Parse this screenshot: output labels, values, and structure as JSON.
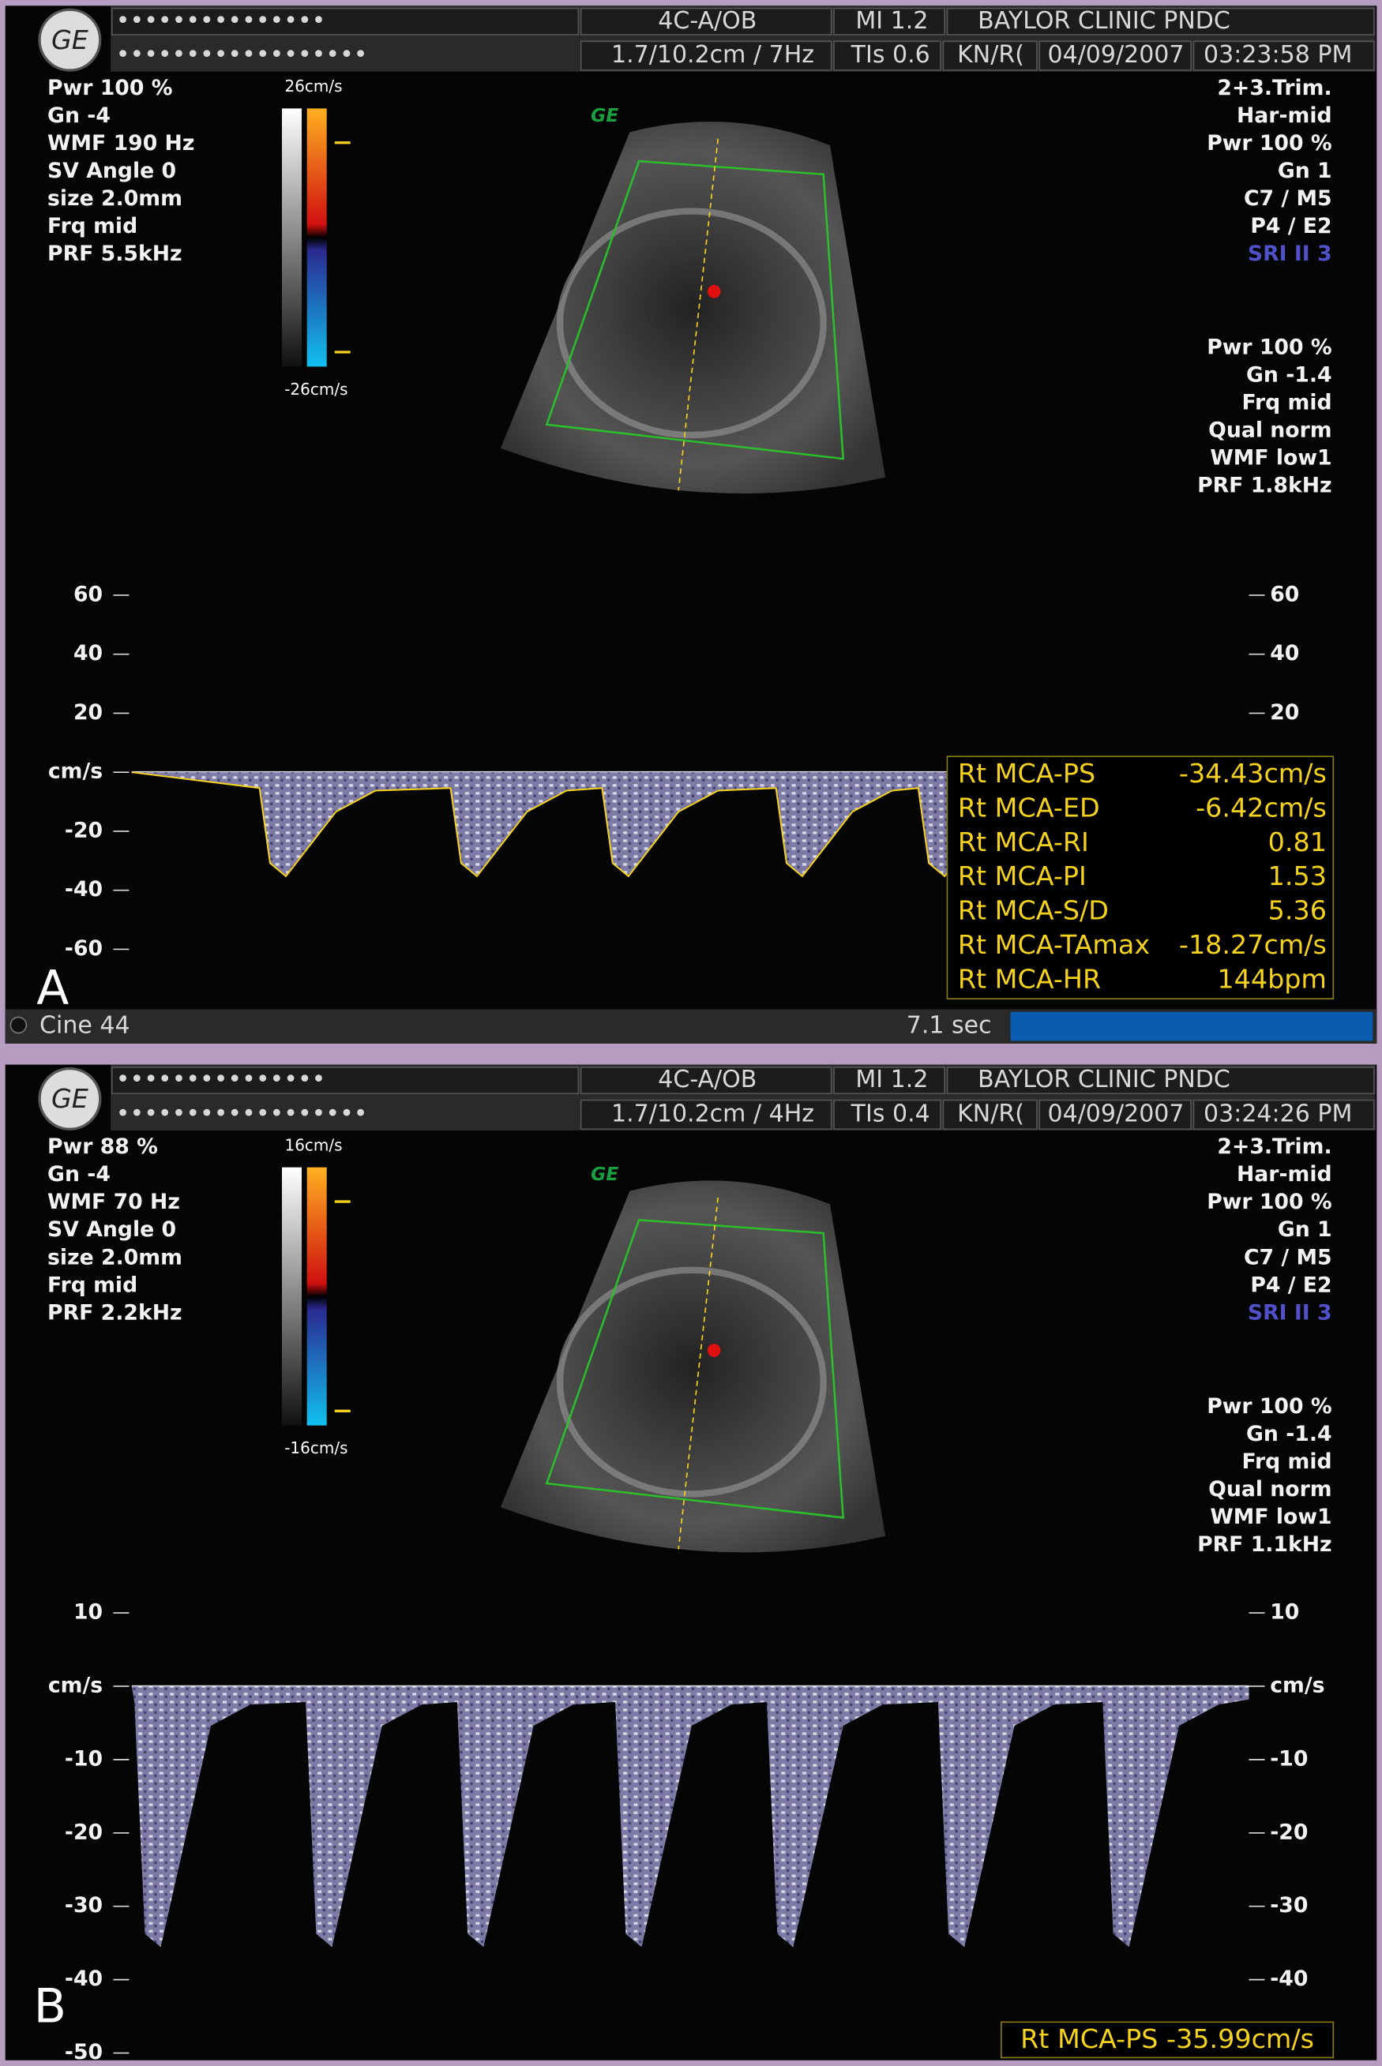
{
  "panels": [
    {
      "header": {
        "dots1": "•••••••••••••••",
        "dots2": "••••••••••••••••••",
        "preset": "4C-A/OB",
        "mi": "MI 1.2",
        "site": "BAYLOR CLINIC PNDC",
        "depth": "1.7/10.2cm / 7Hz",
        "tis": "TIs 0.6",
        "operator": "KN/R(",
        "date": "04/09/2007",
        "time": "03:23:58 PM"
      },
      "logo": "GE",
      "color_params": [
        "Pwr 100 %",
        "Gn -4",
        "WMF 190 Hz",
        "SV Angle  0",
        "size  2.0mm",
        "Frq mid",
        "PRF  5.5kHz"
      ],
      "scale_max": "26cm/s",
      "scale_min": "-26cm/s",
      "probe_params": [
        "2+3.Trim.",
        "Har-mid",
        "Pwr 100 %",
        "Gn  1",
        "C7 / M5",
        "P4 / E2"
      ],
      "sri": "SRI II 3",
      "doppler_params": [
        "Pwr 100 %",
        "Gn -1.4",
        "Frq mid",
        "Qual norm",
        "WMF low1",
        "PRF  1.8kHz"
      ],
      "left_ticks": [
        60,
        40,
        20,
        {
          "value": 0,
          "label": "cm/s"
        },
        -20,
        -40,
        -60
      ],
      "right_ticks": [
        60,
        40,
        20
      ],
      "measurements": [
        [
          "Rt MCA-PS",
          "-34.43cm/s"
        ],
        [
          "Rt MCA-ED",
          "-6.42cm/s"
        ],
        [
          "Rt MCA-RI",
          "0.81"
        ],
        [
          "Rt MCA-PI",
          "1.53"
        ],
        [
          "Rt MCA-S/D",
          "5.36"
        ],
        [
          "Rt MCA-TAmax",
          "-18.27cm/s"
        ],
        [
          "Rt MCA-HR",
          "144bpm"
        ]
      ],
      "label": "A",
      "status": {
        "cine": "Cine 44",
        "duration": "7.1 sec"
      }
    },
    {
      "header": {
        "dots1": "•••••••••••••••",
        "dots2": "••••••••••••••••••",
        "preset": "4C-A/OB",
        "mi": "MI 1.2",
        "site": "BAYLOR CLINIC PNDC",
        "depth": "1.7/10.2cm / 4Hz",
        "tis": "TIs 0.4",
        "operator": "KN/R(",
        "date": "04/09/2007",
        "time": "03:24:26 PM"
      },
      "logo": "GE",
      "color_params": [
        "Pwr  88 %",
        "Gn -4",
        "WMF 70 Hz",
        "SV Angle  0",
        "size  2.0mm",
        "Frq mid",
        "PRF  2.2kHz"
      ],
      "scale_max": "16cm/s",
      "scale_min": "-16cm/s",
      "probe_params": [
        "2+3.Trim.",
        "Har-mid",
        "Pwr 100 %",
        "Gn  1",
        "C7 / M5",
        "P4 / E2"
      ],
      "sri": "SRI II 3",
      "doppler_params": [
        "Pwr 100 %",
        "Gn -1.4",
        "Frq mid",
        "Qual norm",
        "WMF low1",
        "PRF  1.1kHz"
      ],
      "left_ticks": [
        10,
        {
          "value": 0,
          "label": "cm/s"
        },
        -10,
        -20,
        -30,
        -40,
        -50
      ],
      "right_ticks": [
        10,
        {
          "value": 0,
          "label": "cm/s"
        },
        -10,
        -20,
        -30,
        -40
      ],
      "measurements": [
        [
          "Rt MCA-PS -35.99cm/s"
        ]
      ],
      "label": "B"
    }
  ]
}
